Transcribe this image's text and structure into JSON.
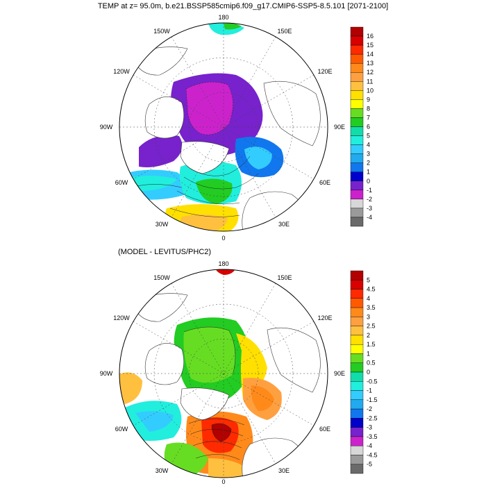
{
  "title_top": "TEMP at z=  95.0m, b.e21.BSSP585cmip6.f09_g17.CMIP6-SSP5-8.5.101 [2071-2100]",
  "title_bottom": "(MODEL - LEVITUS/PHC2)",
  "panels": [
    {
      "id": "top",
      "lon_labels": {
        "top": "180",
        "ul": "150W",
        "ur": "150E",
        "l1": "120W",
        "r1": "120E",
        "l2": "90W",
        "r2": "90E",
        "l3": "60W",
        "r3": "60E",
        "bl": "30W",
        "br": "30E",
        "bottom": "0"
      },
      "colorbar": {
        "labels": [
          "16",
          "15",
          "14",
          "13",
          "12",
          "11",
          "10",
          "9",
          "8",
          "7",
          "6",
          "5",
          "4",
          "3",
          "2",
          "1",
          "0",
          "-1",
          "-2",
          "-3",
          "-4"
        ],
        "colors": [
          "#b30000",
          "#d90000",
          "#ff2a00",
          "#ff5a00",
          "#ff8a1a",
          "#ffa040",
          "#ffc040",
          "#ffe000",
          "#ffff00",
          "#66dd22",
          "#22cc22",
          "#11ddaa",
          "#22eedd",
          "#33ccff",
          "#22aaee",
          "#1177ee",
          "#0000cc",
          "#7722cc",
          "#cc22cc",
          "#d7d7d7",
          "#9a9a9a",
          "#6a6a6a"
        ]
      }
    },
    {
      "id": "bottom",
      "lon_labels": {
        "top": "180",
        "ul": "150W",
        "ur": "150E",
        "l1": "120W",
        "r1": "120E",
        "l2": "90W",
        "r2": "90E",
        "l3": "60W",
        "r3": "60E",
        "bl": "30W",
        "br": "30E",
        "bottom": "0"
      },
      "colorbar": {
        "labels": [
          "5",
          "4.5",
          "4",
          "3.5",
          "3",
          "2.5",
          "2",
          "1.5",
          "1",
          "0.5",
          "0",
          "-0.5",
          "-1",
          "-1.5",
          "-2",
          "-2.5",
          "-3",
          "-3.5",
          "-4",
          "-4.5",
          "-5"
        ],
        "colors": [
          "#b30000",
          "#d90000",
          "#ff2a00",
          "#ff5a00",
          "#ff8a1a",
          "#ffa040",
          "#ffc040",
          "#ffe000",
          "#ffff00",
          "#66dd22",
          "#22cc22",
          "#11ddaa",
          "#22eedd",
          "#33ccff",
          "#22aaee",
          "#1177ee",
          "#0000cc",
          "#7722cc",
          "#cc22cc",
          "#d7d7d7",
          "#9a9a9a",
          "#6a6a6a"
        ]
      }
    }
  ]
}
